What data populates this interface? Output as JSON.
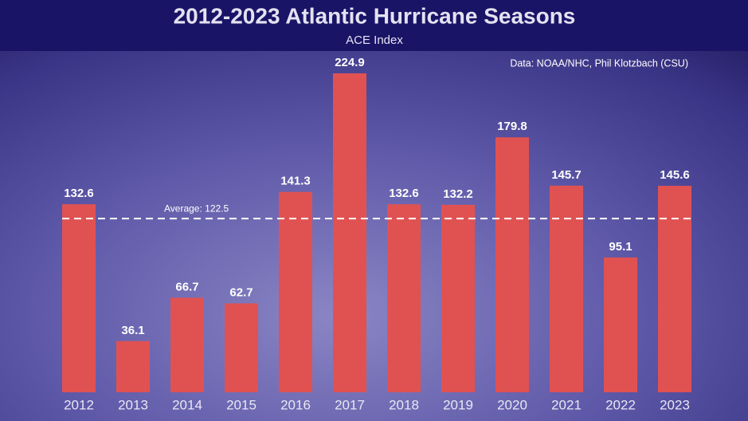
{
  "chart_data": {
    "type": "bar",
    "title": "2012-2023 Atlantic Hurricane Seasons",
    "subtitle": "ACE Index",
    "source": "Data: NOAA/NHC, Phil Klotzbach (CSU)",
    "categories": [
      "2012",
      "2013",
      "2014",
      "2015",
      "2016",
      "2017",
      "2018",
      "2019",
      "2020",
      "2021",
      "2022",
      "2023"
    ],
    "values": [
      132.6,
      36.1,
      66.7,
      62.7,
      141.3,
      224.9,
      132.6,
      132.2,
      179.8,
      145.7,
      95.1,
      145.6
    ],
    "color": "#e05252",
    "average": {
      "value": 122.5,
      "label": "Average: 122.5"
    }
  }
}
